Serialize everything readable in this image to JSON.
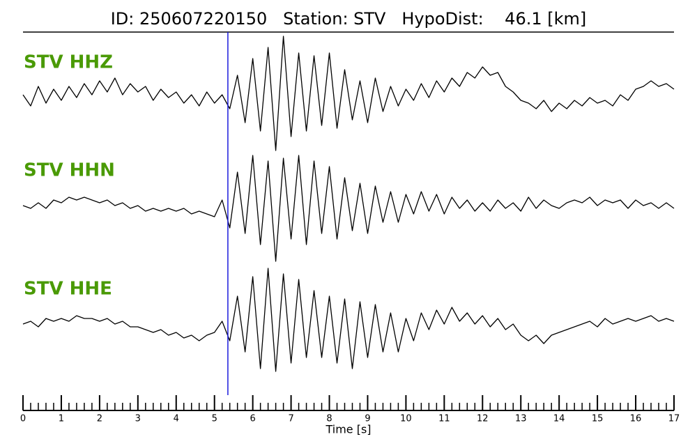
{
  "chart_data": {
    "type": "seismogram",
    "title": "ID: 250607220150   Station: STV   HypoDist:    46.1 [km]",
    "xlabel": "Time [s]",
    "xlim": [
      0,
      17
    ],
    "xticks": [
      0,
      1,
      2,
      3,
      4,
      5,
      6,
      7,
      8,
      9,
      10,
      11,
      12,
      13,
      14,
      15,
      16,
      17
    ],
    "xminor_ticks": [
      0.2,
      0.4,
      0.6,
      0.8,
      1.2,
      1.4,
      1.6,
      1.8,
      2.2,
      2.4,
      2.6,
      2.8,
      3.2,
      3.4,
      3.6,
      3.8,
      4.2,
      4.4,
      4.6,
      4.8,
      5.2,
      5.4,
      5.6,
      5.8,
      6.2,
      6.4,
      6.6,
      6.8,
      7.2,
      7.4,
      7.6,
      7.8,
      8.2,
      8.4,
      8.6,
      8.8,
      9.2,
      9.4,
      9.6,
      9.8,
      10.2,
      10.4,
      10.6,
      10.8,
      11.2,
      11.4,
      11.6,
      11.8,
      12.2,
      12.4,
      12.6,
      12.8,
      13.2,
      13.4,
      13.6,
      13.8,
      14.2,
      14.4,
      14.6,
      14.8,
      15.2,
      15.4,
      15.6,
      15.8,
      16.2,
      16.4,
      16.6,
      16.8
    ],
    "pick": 5.35,
    "pick_color": "#1a1adb",
    "label_color": "#4a9a06",
    "x": [
      0,
      0.2,
      0.4,
      0.6,
      0.8,
      1,
      1.2,
      1.4,
      1.6,
      1.8,
      2,
      2.2,
      2.4,
      2.6,
      2.8,
      3,
      3.2,
      3.4,
      3.6,
      3.8,
      4,
      4.2,
      4.4,
      4.6,
      4.8,
      5,
      5.2,
      5.4,
      5.6,
      5.8,
      6,
      6.2,
      6.4,
      6.6,
      6.8,
      7,
      7.2,
      7.4,
      7.6,
      7.8,
      8,
      8.2,
      8.4,
      8.6,
      8.8,
      9,
      9.2,
      9.4,
      9.6,
      9.8,
      10,
      10.2,
      10.4,
      10.6,
      10.8,
      11,
      11.2,
      11.4,
      11.6,
      11.8,
      12,
      12.2,
      12.4,
      12.6,
      12.8,
      13,
      13.2,
      13.4,
      13.6,
      13.8,
      14,
      14.2,
      14.4,
      14.6,
      14.8,
      15,
      15.2,
      15.4,
      15.6,
      15.8,
      16,
      16.2,
      16.4,
      16.6,
      16.8,
      17
    ],
    "series": [
      {
        "name": "STV HHZ",
        "color": "#000000",
        "values": [
          0.05,
          -0.15,
          0.2,
          -0.1,
          0.15,
          -0.05,
          0.2,
          0,
          0.25,
          0.05,
          0.3,
          0.1,
          0.35,
          0.05,
          0.25,
          0.1,
          0.2,
          -0.05,
          0.15,
          0,
          0.1,
          -0.1,
          0.05,
          -0.15,
          0.1,
          -0.1,
          0.05,
          -0.2,
          0.4,
          -0.45,
          0.7,
          -0.6,
          0.9,
          -0.95,
          1.1,
          -0.7,
          0.8,
          -0.6,
          0.75,
          -0.5,
          0.8,
          -0.55,
          0.5,
          -0.4,
          0.3,
          -0.45,
          0.35,
          -0.25,
          0.2,
          -0.15,
          0.15,
          -0.05,
          0.25,
          0,
          0.3,
          0.1,
          0.35,
          0.2,
          0.45,
          0.35,
          0.55,
          0.4,
          0.45,
          0.2,
          0.1,
          -0.05,
          -0.1,
          -0.2,
          -0.05,
          -0.25,
          -0.1,
          -0.2,
          -0.05,
          -0.15,
          0,
          -0.1,
          -0.05,
          -0.15,
          0.05,
          -0.05,
          0.15,
          0.2,
          0.3,
          0.2,
          0.25,
          0.15
        ]
      },
      {
        "name": "STV HHN",
        "color": "#000000",
        "values": [
          0,
          -0.05,
          0.05,
          -0.05,
          0.1,
          0.05,
          0.15,
          0.1,
          0.15,
          0.1,
          0.05,
          0.1,
          0,
          0.05,
          -0.05,
          0,
          -0.1,
          -0.05,
          -0.1,
          -0.05,
          -0.1,
          -0.05,
          -0.15,
          -0.1,
          -0.15,
          -0.2,
          0.1,
          -0.4,
          0.6,
          -0.5,
          0.9,
          -0.7,
          0.8,
          -1.0,
          0.85,
          -0.6,
          0.9,
          -0.7,
          0.8,
          -0.5,
          0.7,
          -0.6,
          0.5,
          -0.45,
          0.4,
          -0.5,
          0.35,
          -0.3,
          0.25,
          -0.3,
          0.2,
          -0.15,
          0.25,
          -0.1,
          0.2,
          -0.15,
          0.15,
          -0.05,
          0.1,
          -0.1,
          0.05,
          -0.1,
          0.1,
          -0.05,
          0.05,
          -0.1,
          0.15,
          -0.05,
          0.1,
          0,
          -0.05,
          0.05,
          0.1,
          0.05,
          0.15,
          0,
          0.1,
          0.05,
          0.1,
          -0.05,
          0.1,
          0,
          0.05,
          -0.05,
          0.05,
          -0.05
        ]
      },
      {
        "name": "STV HHE",
        "color": "#000000",
        "values": [
          0,
          0.05,
          -0.05,
          0.1,
          0.05,
          0.1,
          0.05,
          0.15,
          0.1,
          0.1,
          0.05,
          0.1,
          0,
          0.05,
          -0.05,
          -0.05,
          -0.1,
          -0.15,
          -0.1,
          -0.2,
          -0.15,
          -0.25,
          -0.2,
          -0.3,
          -0.2,
          -0.15,
          0.05,
          -0.3,
          0.5,
          -0.5,
          0.85,
          -0.8,
          1.0,
          -0.85,
          0.9,
          -0.7,
          0.8,
          -0.6,
          0.6,
          -0.6,
          0.5,
          -0.7,
          0.45,
          -0.8,
          0.4,
          -0.6,
          0.35,
          -0.5,
          0.2,
          -0.5,
          0.1,
          -0.3,
          0.2,
          -0.1,
          0.25,
          0,
          0.3,
          0.05,
          0.2,
          0,
          0.15,
          -0.05,
          0.1,
          -0.1,
          0,
          -0.2,
          -0.3,
          -0.2,
          -0.35,
          -0.2,
          -0.15,
          -0.1,
          -0.05,
          0,
          0.05,
          -0.05,
          0.1,
          0,
          0.05,
          0.1,
          0.05,
          0.1,
          0.15,
          0.05,
          0.1,
          0.05
        ]
      }
    ]
  }
}
